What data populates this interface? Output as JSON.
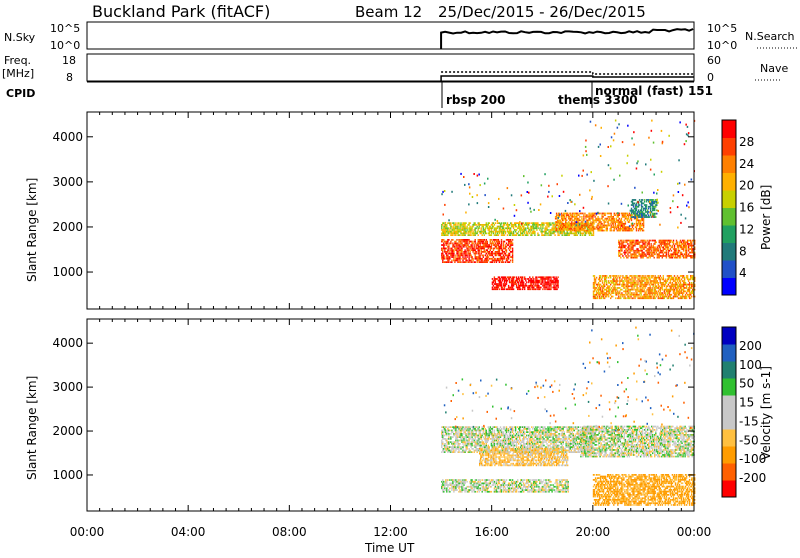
{
  "header": {
    "site": "Buckland Park (fitACF)",
    "beam": "Beam 12",
    "date_range": "25/Dec/2015 - 26/Dec/2015"
  },
  "status_panel": {
    "nsky_label": "N.Sky",
    "nsky_ticks": [
      "10^5",
      "10^0"
    ],
    "nsearch_label": "N.Search",
    "nsearch_ticks": [
      "10^5",
      "10^0"
    ],
    "freq_label": "Freq.",
    "freq_unit": "[MHz]",
    "freq_ticks": [
      "18",
      "8"
    ],
    "nave_label": "Nave",
    "nave_ticks": [
      "60",
      "0"
    ],
    "cpid_label": "CPID",
    "cpid_entries": [
      {
        "label": "rbsp 200",
        "start_hour": 14.0
      },
      {
        "label": "thems 3300",
        "start_hour": 20.0
      },
      {
        "label": "normal (fast) 151",
        "start_hour": 20.0
      }
    ]
  },
  "chart_data": [
    {
      "type": "heatmap",
      "name": "power",
      "ylabel": "Slant Range [km]",
      "yticks": [
        1000,
        2000,
        3000,
        4000
      ],
      "ylim": [
        180,
        4550
      ],
      "xlim": [
        0,
        24
      ],
      "colorbar_label": "Power [dB]",
      "colorbar_ticks": [
        4,
        8,
        12,
        16,
        20,
        24,
        28
      ],
      "colorbar_range": [
        0,
        30
      ],
      "data_start_hour": 14.0,
      "scatter_bands": [
        {
          "start_hour": 14.0,
          "end_hour": 16.8,
          "range_km": [
            1200,
            1700
          ],
          "level_db": 26
        },
        {
          "start_hour": 16.0,
          "end_hour": 18.6,
          "range_km": [
            600,
            900
          ],
          "level_db": 29
        },
        {
          "start_hour": 14.0,
          "end_hour": 20.0,
          "range_km": [
            1800,
            2100
          ],
          "level_db": 17
        },
        {
          "start_hour": 18.5,
          "end_hour": 22.0,
          "range_km": [
            1900,
            2300
          ],
          "level_db": 22
        },
        {
          "start_hour": 20.0,
          "end_hour": 24.0,
          "range_km": [
            400,
            900
          ],
          "level_db": 21
        },
        {
          "start_hour": 21.0,
          "end_hour": 24.0,
          "range_km": [
            1300,
            1700
          ],
          "level_db": 24
        },
        {
          "start_hour": 21.5,
          "end_hour": 22.5,
          "range_km": [
            2200,
            2600
          ],
          "level_db": 9
        }
      ]
    },
    {
      "type": "heatmap",
      "name": "velocity",
      "ylabel": "Slant Range [km]",
      "yticks": [
        1000,
        2000,
        3000,
        4000
      ],
      "ylim": [
        180,
        4550
      ],
      "xlim": [
        0,
        24
      ],
      "xlabel": "Time UT",
      "xticks": [
        "00:00",
        "04:00",
        "08:00",
        "12:00",
        "16:00",
        "20:00",
        "00:00"
      ],
      "colorbar_label": "Velocity [m s-1]",
      "colorbar_ticks": [
        -200,
        -100,
        -50,
        -15,
        15,
        50,
        100,
        200
      ],
      "data_start_hour": 14.0,
      "scatter_bands": [
        {
          "start_hour": 14.0,
          "end_hour": 20.0,
          "range_km": [
            1500,
            2100
          ],
          "velocity": 0
        },
        {
          "start_hour": 14.0,
          "end_hour": 19.0,
          "range_km": [
            600,
            900
          ],
          "velocity": 0
        },
        {
          "start_hour": 15.5,
          "end_hour": 19.0,
          "range_km": [
            1200,
            1600
          ],
          "velocity": -30
        },
        {
          "start_hour": 19.5,
          "end_hour": 24.0,
          "range_km": [
            1400,
            2100
          ],
          "velocity": 0
        },
        {
          "start_hour": 20.0,
          "end_hour": 24.0,
          "range_km": [
            300,
            1000
          ],
          "velocity": -60
        }
      ]
    }
  ],
  "colors": {
    "power_scale": [
      "#0000ff",
      "#2050c8",
      "#207a7a",
      "#20a060",
      "#60c030",
      "#c8d000",
      "#ffb000",
      "#ff8000",
      "#ff4000",
      "#ff0000"
    ],
    "velocity_scale": [
      "#ff0000",
      "#ff6000",
      "#ff9c00",
      "#ffc040",
      "#c8c8c8",
      "#c8c8c8",
      "#30c030",
      "#208070",
      "#2060c0",
      "#0000c0"
    ],
    "ground_scatter": "#c8c8c8"
  }
}
